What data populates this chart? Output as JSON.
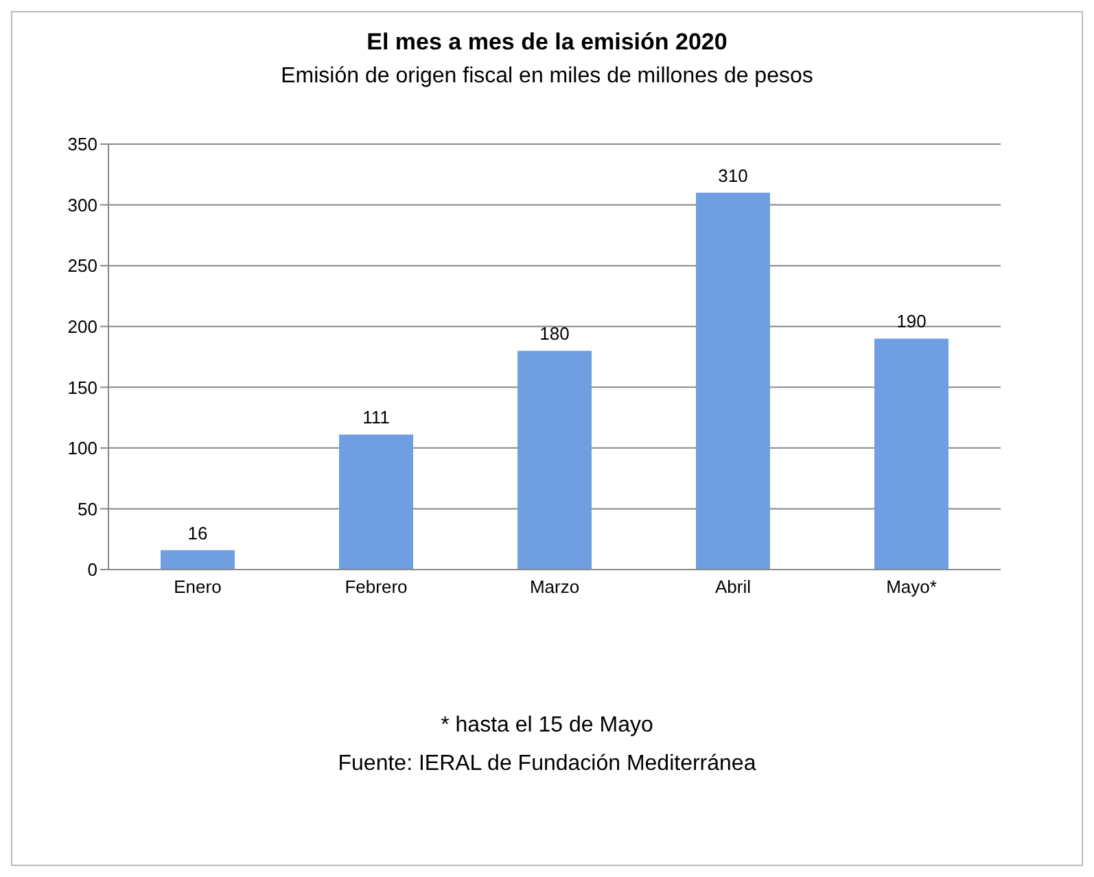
{
  "chart_data": {
    "type": "bar",
    "title": "El mes a mes de la emisión 2020",
    "subtitle": "Emisión de origen fiscal en miles de millones de pesos",
    "categories": [
      "Enero",
      "Febrero",
      "Marzo",
      "Abril",
      "Mayo*"
    ],
    "values": [
      16,
      111,
      180,
      310,
      190
    ],
    "color": "#6f9fe0",
    "ylim": [
      0,
      350
    ],
    "yticks": [
      0,
      50,
      100,
      150,
      200,
      250,
      300,
      350
    ],
    "grid": "y",
    "data_labels": true,
    "annotations": [
      "* hasta el 15 de Mayo",
      "Fuente: IERAL de Fundación Mediterránea"
    ]
  }
}
